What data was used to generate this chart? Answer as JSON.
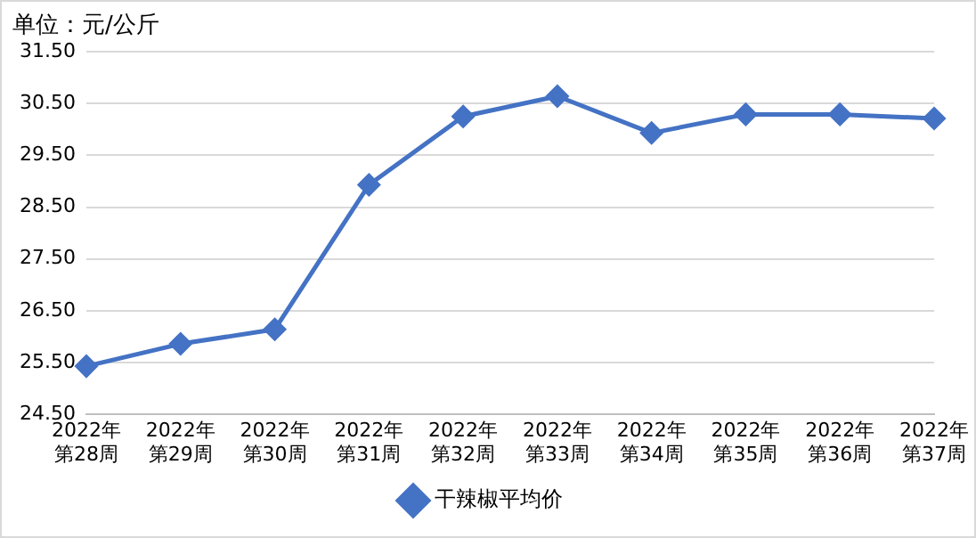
{
  "chart_data": {
    "type": "line",
    "ylabel": "单位：元/公斤",
    "categories": [
      "2022年第28周",
      "2022年第29周",
      "2022年第30周",
      "2022年第31周",
      "2022年第32周",
      "2022年第33周",
      "2022年第34周",
      "2022年第35周",
      "2022年第36周",
      "2022年第37周"
    ],
    "series": [
      {
        "name": "干辣椒平均价",
        "color": "#4472c4",
        "values": [
          25.43,
          25.86,
          26.14,
          28.93,
          30.25,
          30.64,
          29.93,
          30.29,
          30.29,
          30.21
        ]
      }
    ],
    "ylim": [
      24.5,
      31.5
    ],
    "yticks": [
      {
        "value": 24.5,
        "label": "24.50"
      },
      {
        "value": 25.5,
        "label": "25.50"
      },
      {
        "value": 26.5,
        "label": "26.50"
      },
      {
        "value": 27.5,
        "label": "27.50"
      },
      {
        "value": 28.5,
        "label": "28.50"
      },
      {
        "value": 29.5,
        "label": "29.50"
      },
      {
        "value": 30.5,
        "label": "30.50"
      },
      {
        "value": 31.5,
        "label": "31.50"
      }
    ],
    "grid": "y",
    "legend": "bottom",
    "marker": "diamond",
    "line_style": "solid"
  }
}
